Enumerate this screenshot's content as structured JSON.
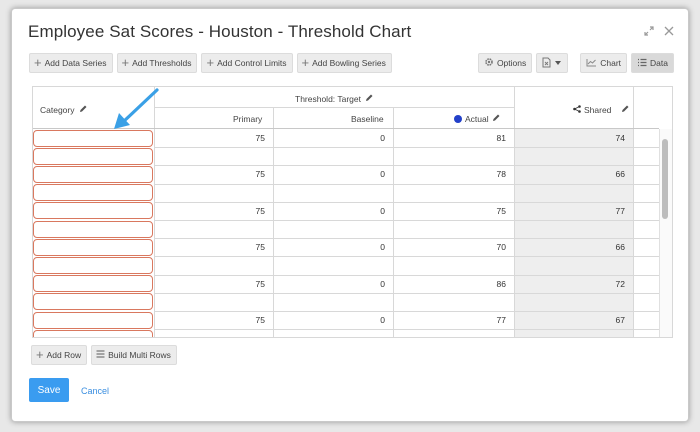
{
  "dialog": {
    "title": "Employee Sat Scores - Houston - Threshold Chart"
  },
  "toolbar": {
    "add_data_series": "Add Data Series",
    "add_thresholds": "Add Thresholds",
    "add_control_limits": "Add Control Limits",
    "add_bowling_series": "Add Bowling Series",
    "options": "Options",
    "chart_view": "Chart",
    "data_view": "Data"
  },
  "grid": {
    "category_header": "Category",
    "threshold_header": "Threshold: Target",
    "primary_header": "Primary",
    "baseline_header": "Baseline",
    "actual_header": "Actual",
    "actual_dot_color": "#2340c9",
    "shared_header": "Shared",
    "rows": [
      {
        "primary": "75",
        "baseline": "0",
        "actual": "81",
        "shared": "74"
      },
      {
        "primary": "75",
        "baseline": "0",
        "actual": "78",
        "shared": "66"
      },
      {
        "primary": "75",
        "baseline": "0",
        "actual": "75",
        "shared": "77"
      },
      {
        "primary": "75",
        "baseline": "0",
        "actual": "70",
        "shared": "66"
      },
      {
        "primary": "75",
        "baseline": "0",
        "actual": "86",
        "shared": "72"
      },
      {
        "primary": "75",
        "baseline": "0",
        "actual": "77",
        "shared": "67"
      }
    ]
  },
  "footer": {
    "add_row": "Add Row",
    "build_multi_rows": "Build Multi Rows",
    "save": "Save",
    "cancel": "Cancel"
  },
  "colors": {
    "accent": "#3a9cf0",
    "category_border": "#d9785f",
    "annotation_arrow": "#3aa0e6"
  }
}
